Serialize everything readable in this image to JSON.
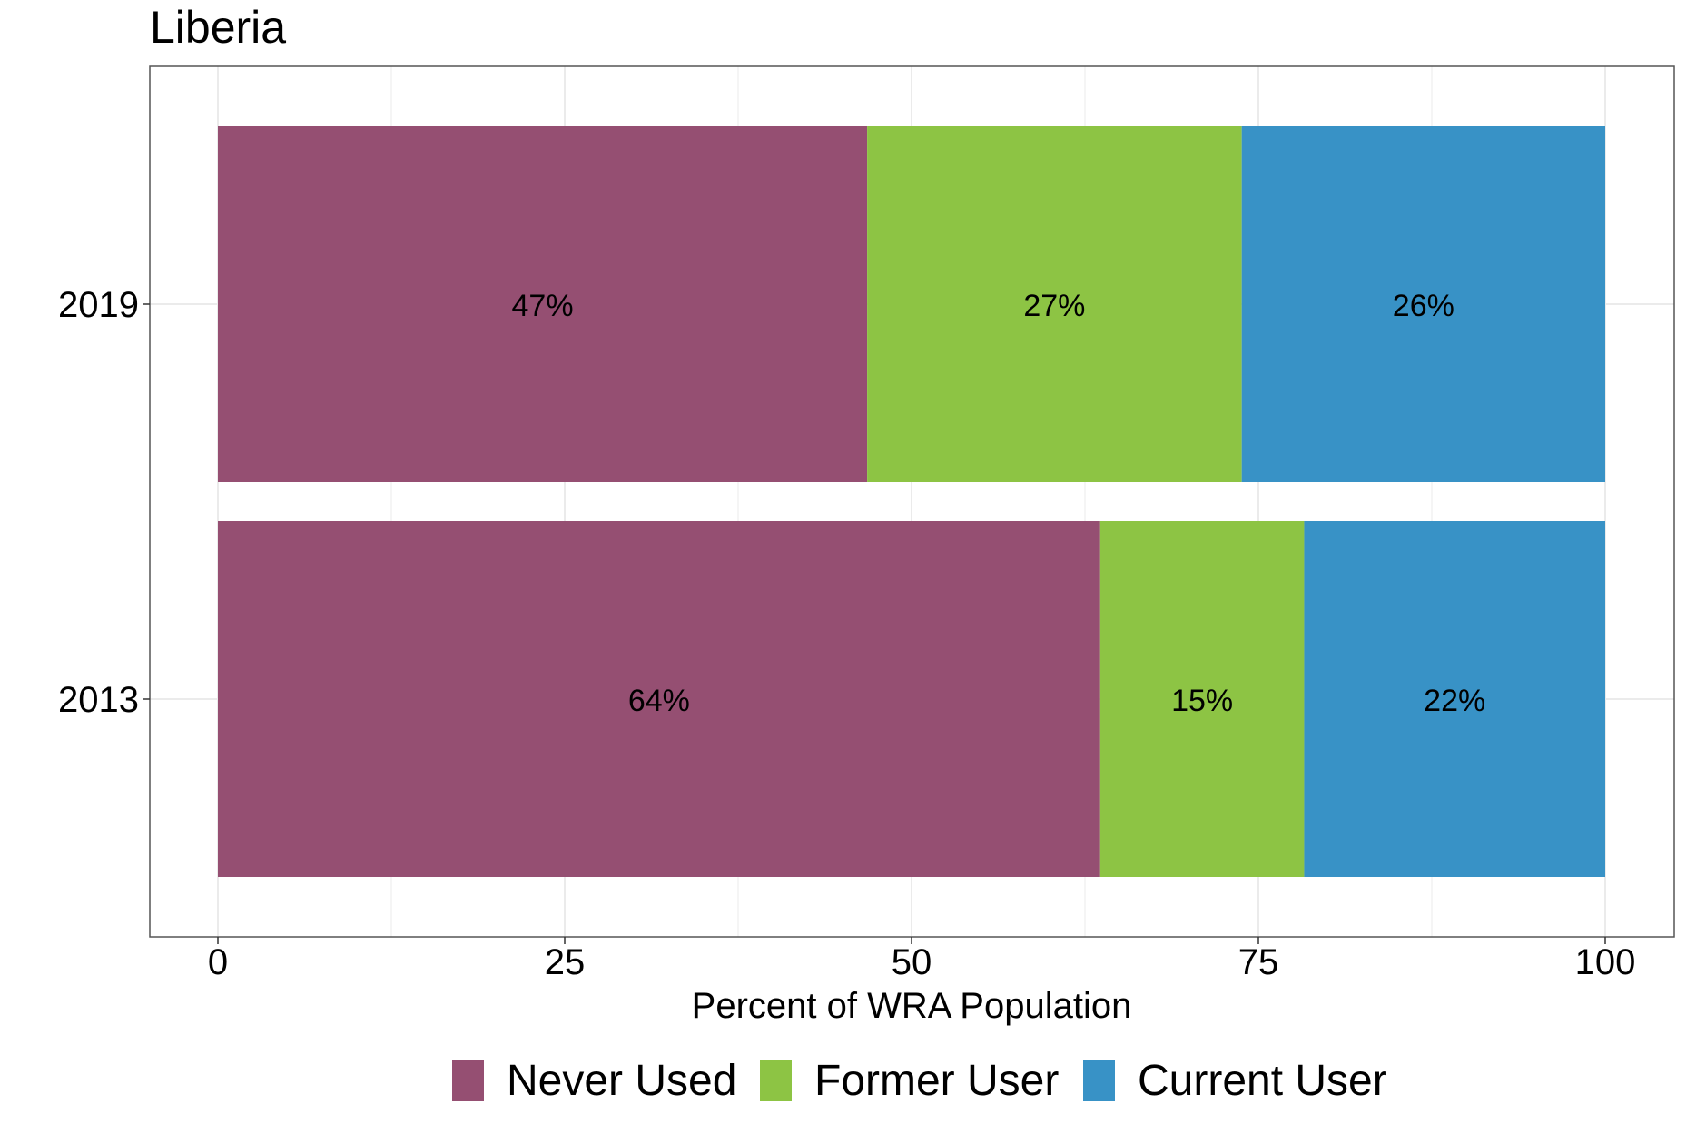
{
  "chart_data": {
    "type": "bar",
    "orientation": "horizontal",
    "stacked": true,
    "title": "Liberia",
    "xlabel": "Percent of WRA Population",
    "ylabel": "",
    "xlim": [
      0,
      100
    ],
    "xticks": [
      0,
      25,
      50,
      75,
      100
    ],
    "grid": true,
    "legend_position": "bottom",
    "categories": [
      "2019",
      "2013"
    ],
    "series": [
      {
        "name": "Never Used",
        "color": "#954F72",
        "values": [
          46.8,
          63.6
        ],
        "labels": [
          "47%",
          "64%"
        ]
      },
      {
        "name": "Former User",
        "color": "#8DC444",
        "values": [
          27.0,
          14.7
        ],
        "labels": [
          "27%",
          "15%"
        ]
      },
      {
        "name": "Current User",
        "color": "#3892C6",
        "values": [
          26.2,
          21.7
        ],
        "labels": [
          "26%",
          "22%"
        ]
      }
    ]
  }
}
